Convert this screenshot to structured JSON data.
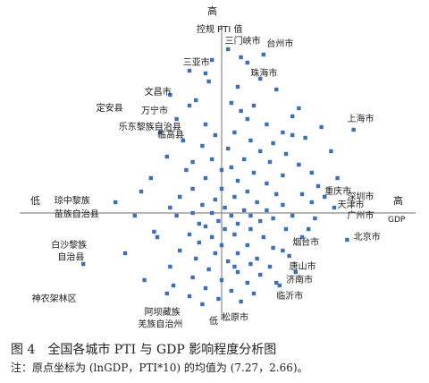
{
  "chart_data": {
    "type": "scatter",
    "xlabel": "GDP",
    "ylabel": "控规 PTI 值",
    "x_high": "高",
    "x_low": "低",
    "y_high": "高",
    "y_low": "低",
    "xlim": [
      -6,
      6
    ],
    "ylim": [
      -4,
      7
    ],
    "points": [
      [
        0.2,
        6.1
      ],
      [
        1.3,
        5.9
      ],
      [
        0.6,
        5.8
      ],
      [
        -0.3,
        5.7
      ],
      [
        0.8,
        5.6
      ],
      [
        -1.0,
        5.3
      ],
      [
        -0.5,
        5.2
      ],
      [
        1.2,
        5.0
      ],
      [
        -0.4,
        4.9
      ],
      [
        0.5,
        4.7
      ],
      [
        1.7,
        4.6
      ],
      [
        -1.6,
        4.4
      ],
      [
        -0.8,
        4.2
      ],
      [
        -1.0,
        4.0
      ],
      [
        0.3,
        4.1
      ],
      [
        1.0,
        4.0
      ],
      [
        2.4,
        3.9
      ],
      [
        2.2,
        3.6
      ],
      [
        -1.4,
        3.5
      ],
      [
        -0.5,
        3.3
      ],
      [
        0.8,
        3.5
      ],
      [
        1.4,
        3.3
      ],
      [
        1.9,
        3.0
      ],
      [
        3.1,
        3.2
      ],
      [
        4.1,
        3.1
      ],
      [
        -1.9,
        3.0
      ],
      [
        -0.2,
        2.9
      ],
      [
        0.4,
        3.0
      ],
      [
        2.6,
        2.8
      ],
      [
        -1.2,
        2.7
      ],
      [
        0.9,
        2.7
      ],
      [
        1.6,
        2.6
      ],
      [
        -0.6,
        2.5
      ],
      [
        0.2,
        2.4
      ],
      [
        1.2,
        2.3
      ],
      [
        2.0,
        2.2
      ],
      [
        3.4,
        2.3
      ],
      [
        -1.7,
        2.1
      ],
      [
        -0.3,
        2.0
      ],
      [
        0.7,
        2.0
      ],
      [
        1.5,
        1.9
      ],
      [
        2.4,
        1.8
      ],
      [
        0.3,
        1.7
      ],
      [
        -1.1,
        1.6
      ],
      [
        1.0,
        1.5
      ],
      [
        1.9,
        1.4
      ],
      [
        2.8,
        1.5
      ],
      [
        -0.5,
        1.3
      ],
      [
        0.5,
        1.2
      ],
      [
        1.4,
        1.1
      ],
      [
        3.0,
        1.0
      ],
      [
        -0.9,
        0.9
      ],
      [
        0.0,
        0.9
      ],
      [
        0.8,
        0.8
      ],
      [
        1.7,
        0.7
      ],
      [
        2.5,
        0.7
      ],
      [
        -1.3,
        0.6
      ],
      [
        -0.2,
        0.5
      ],
      [
        0.4,
        0.6
      ],
      [
        1.1,
        0.4
      ],
      [
        1.9,
        0.3
      ],
      [
        2.8,
        0.4
      ],
      [
        -0.6,
        0.3
      ],
      [
        0.1,
        0.2
      ],
      [
        0.7,
        0.1
      ],
      [
        1.4,
        0.1
      ],
      [
        3.2,
        0.6
      ],
      [
        3.5,
        0.2
      ],
      [
        -0.9,
        0.0
      ],
      [
        -0.3,
        0.0
      ],
      [
        0.3,
        -0.1
      ],
      [
        0.9,
        -0.1
      ],
      [
        1.6,
        -0.2
      ],
      [
        2.2,
        -0.1
      ],
      [
        2.9,
        -0.2
      ],
      [
        -1.4,
        -0.1
      ],
      [
        -0.1,
        -0.3
      ],
      [
        0.5,
        -0.4
      ],
      [
        1.2,
        -0.3
      ],
      [
        -0.5,
        -0.5
      ],
      [
        0.1,
        -0.6
      ],
      [
        0.9,
        -0.6
      ],
      [
        2.0,
        -0.6
      ],
      [
        -1.0,
        -0.8
      ],
      [
        -0.3,
        -0.9
      ],
      [
        0.4,
        -0.8
      ],
      [
        1.3,
        -0.9
      ],
      [
        2.5,
        -0.9
      ],
      [
        3.9,
        -1.0
      ],
      [
        -2.0,
        -0.9
      ],
      [
        -0.7,
        -1.1
      ],
      [
        0.0,
        -1.2
      ],
      [
        0.8,
        -1.2
      ],
      [
        1.6,
        -1.3
      ],
      [
        -1.3,
        -1.4
      ],
      [
        -0.2,
        -1.5
      ],
      [
        0.5,
        -1.5
      ],
      [
        1.1,
        -1.7
      ],
      [
        2.1,
        -1.6
      ],
      [
        -0.8,
        -1.7
      ],
      [
        0.2,
        -1.8
      ],
      [
        0.9,
        -1.9
      ],
      [
        1.5,
        -2.0
      ],
      [
        -1.6,
        -2.0
      ],
      [
        -0.4,
        -2.1
      ],
      [
        0.5,
        -2.2
      ],
      [
        1.2,
        -2.3
      ],
      [
        2.3,
        -2.2
      ],
      [
        -0.9,
        -2.4
      ],
      [
        0.0,
        -2.5
      ],
      [
        0.8,
        -2.6
      ],
      [
        1.7,
        -2.6
      ],
      [
        -1.5,
        -2.7
      ],
      [
        -0.5,
        -2.8
      ],
      [
        0.3,
        -2.9
      ],
      [
        1.0,
        -3.0
      ],
      [
        -1.0,
        -3.1
      ],
      [
        -0.1,
        -3.2
      ],
      [
        0.6,
        -3.3
      ],
      [
        -0.6,
        -3.4
      ],
      [
        -2.7,
        -0.1
      ],
      [
        -3.3,
        0.4
      ],
      [
        -2.1,
        -0.7
      ],
      [
        -2.5,
        0.8
      ],
      [
        -3.0,
        -1.5
      ],
      [
        -4.3,
        -1.9
      ],
      [
        -1.7,
        -3.0
      ],
      [
        -2.4,
        -2.5
      ],
      [
        3.6,
        1.3
      ],
      [
        2.7,
        -0.6
      ],
      [
        1.9,
        -1.4
      ],
      [
        0.6,
        3.8
      ],
      [
        -0.9,
        1.9
      ],
      [
        2.2,
        2.9
      ],
      [
        0.0,
        1.6
      ],
      [
        -0.7,
        -0.4
      ],
      [
        1.8,
        -2.7
      ],
      [
        0.4,
        -2.0
      ],
      [
        -2.2,
        1.3
      ],
      [
        -1.6,
        0.2
      ]
    ],
    "labels": [
      {
        "text": "三门峡市",
        "x": 0.1,
        "y": 6.3
      },
      {
        "text": "台州市",
        "x": 1.4,
        "y": 6.2
      },
      {
        "text": "三亚市",
        "x": -1.2,
        "y": 5.5
      },
      {
        "text": "珠海市",
        "x": 0.9,
        "y": 5.1
      },
      {
        "text": "文昌市",
        "x": -2.4,
        "y": 4.4
      },
      {
        "text": "定安县",
        "x": -3.9,
        "y": 3.8
      },
      {
        "text": "万宁市",
        "x": -2.5,
        "y": 3.7
      },
      {
        "text": "乐东黎族自治县",
        "x": -3.2,
        "y": 3.1
      },
      {
        "text": "临高县",
        "x": -2.0,
        "y": 2.8
      },
      {
        "text": "上海市",
        "x": 3.9,
        "y": 3.4
      },
      {
        "text": "重庆市",
        "x": 3.2,
        "y": 0.7
      },
      {
        "text": "深圳市",
        "x": 3.9,
        "y": 0.5
      },
      {
        "text": "天津市",
        "x": 3.6,
        "y": 0.2
      },
      {
        "text": "广州市",
        "x": 3.9,
        "y": -0.2
      },
      {
        "text": "北京市",
        "x": 4.1,
        "y": -1.0
      },
      {
        "text": "烟台市",
        "x": 2.2,
        "y": -1.2
      },
      {
        "text": "唐山市",
        "x": 2.1,
        "y": -2.1
      },
      {
        "text": "济南市",
        "x": 2.0,
        "y": -2.6
      },
      {
        "text": "临沂市",
        "x": 1.7,
        "y": -3.2
      },
      {
        "text": "琼中黎族",
        "x": -5.2,
        "y": 0.35
      },
      {
        "text": "苗族自治县",
        "x": -5.2,
        "y": -0.15
      },
      {
        "text": "白沙黎族",
        "x": -5.3,
        "y": -1.3
      },
      {
        "text": "自治县",
        "x": -5.1,
        "y": -1.75
      },
      {
        "text": "神农架林区",
        "x": -5.9,
        "y": -3.3
      },
      {
        "text": "阿坝藏族",
        "x": -2.4,
        "y": -3.8
      },
      {
        "text": "羌族自治州",
        "x": -2.6,
        "y": -4.25
      },
      {
        "text": "松原市",
        "x": 0.0,
        "y": -4.0
      }
    ]
  },
  "caption": {
    "title": "图 4　全国各城市 PTI 与 GDP 影响程度分析图",
    "note": "注：原点坐标为 (lnGDP，PTI*10) 的均值为 (7.27，2.66)。"
  }
}
